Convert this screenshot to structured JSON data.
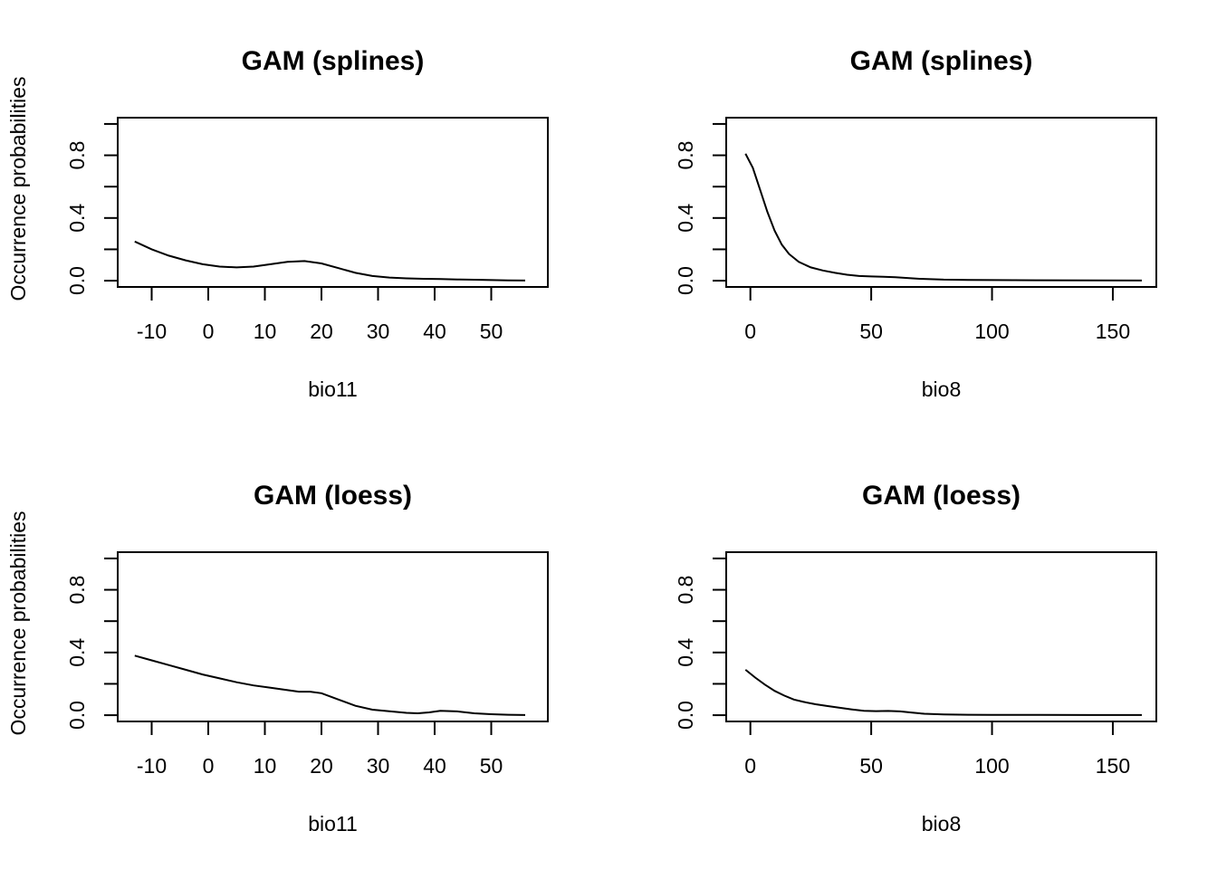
{
  "chart_data": [
    {
      "type": "line",
      "title": "GAM (splines)",
      "xlabel": "bio11",
      "ylabel": "Occurrence probabilities",
      "xlim": [
        -16,
        60
      ],
      "ylim": [
        -0.04,
        1.04
      ],
      "xticks": [
        -10,
        0,
        10,
        20,
        30,
        40,
        50
      ],
      "xtick_labels": [
        "-10",
        "0",
        "10",
        "20",
        "30",
        "40",
        "50"
      ],
      "yticks": [
        0.0,
        0.2,
        0.4,
        0.6,
        0.8,
        1.0
      ],
      "ytick_labels": [
        "0.0",
        "",
        "0.4",
        "",
        "0.8",
        ""
      ],
      "series": [
        {
          "x": [
            -13,
            -10,
            -7,
            -4,
            -1,
            2,
            5,
            8,
            11,
            14,
            17,
            20,
            23,
            26,
            29,
            32,
            35,
            38,
            41,
            44,
            47,
            50,
            53,
            56
          ],
          "y": [
            0.25,
            0.2,
            0.16,
            0.13,
            0.105,
            0.09,
            0.085,
            0.09,
            0.105,
            0.12,
            0.125,
            0.11,
            0.08,
            0.05,
            0.03,
            0.02,
            0.015,
            0.012,
            0.01,
            0.008,
            0.006,
            0.004,
            0.002,
            0.001
          ]
        }
      ]
    },
    {
      "type": "line",
      "title": "GAM (splines)",
      "xlabel": "bio8",
      "ylabel": "",
      "xlim": [
        -10,
        168
      ],
      "ylim": [
        -0.04,
        1.04
      ],
      "xticks": [
        0,
        50,
        100,
        150
      ],
      "xtick_labels": [
        "0",
        "50",
        "100",
        "150"
      ],
      "yticks": [
        0.0,
        0.2,
        0.4,
        0.6,
        0.8,
        1.0
      ],
      "ytick_labels": [
        "0.0",
        "",
        "0.4",
        "",
        "0.8",
        ""
      ],
      "series": [
        {
          "x": [
            -2,
            1,
            4,
            7,
            10,
            13,
            16,
            20,
            25,
            30,
            35,
            40,
            45,
            50,
            55,
            60,
            65,
            70,
            80,
            90,
            100,
            120,
            140,
            162
          ],
          "y": [
            0.81,
            0.72,
            0.58,
            0.44,
            0.32,
            0.23,
            0.17,
            0.12,
            0.085,
            0.065,
            0.05,
            0.038,
            0.03,
            0.027,
            0.025,
            0.022,
            0.017,
            0.012,
            0.007,
            0.005,
            0.004,
            0.003,
            0.002,
            0.001
          ]
        }
      ]
    },
    {
      "type": "line",
      "title": "GAM (loess)",
      "xlabel": "bio11",
      "ylabel": "Occurrence probabilities",
      "xlim": [
        -16,
        60
      ],
      "ylim": [
        -0.04,
        1.04
      ],
      "xticks": [
        -10,
        0,
        10,
        20,
        30,
        40,
        50
      ],
      "xtick_labels": [
        "-10",
        "0",
        "10",
        "20",
        "30",
        "40",
        "50"
      ],
      "yticks": [
        0.0,
        0.2,
        0.4,
        0.6,
        0.8,
        1.0
      ],
      "ytick_labels": [
        "0.0",
        "",
        "0.4",
        "",
        "0.8",
        ""
      ],
      "series": [
        {
          "x": [
            -13,
            -10,
            -7,
            -4,
            -1,
            2,
            5,
            8,
            11,
            14,
            16,
            18,
            20,
            23,
            26,
            29,
            32,
            35,
            37,
            39,
            41,
            44,
            47,
            50,
            53,
            56
          ],
          "y": [
            0.38,
            0.35,
            0.32,
            0.29,
            0.26,
            0.235,
            0.21,
            0.19,
            0.175,
            0.16,
            0.15,
            0.15,
            0.14,
            0.1,
            0.06,
            0.035,
            0.025,
            0.015,
            0.012,
            0.018,
            0.028,
            0.024,
            0.012,
            0.006,
            0.003,
            0.001
          ]
        }
      ]
    },
    {
      "type": "line",
      "title": "GAM (loess)",
      "xlabel": "bio8",
      "ylabel": "",
      "xlim": [
        -10,
        168
      ],
      "ylim": [
        -0.04,
        1.04
      ],
      "xticks": [
        0,
        50,
        100,
        150
      ],
      "xtick_labels": [
        "0",
        "50",
        "100",
        "150"
      ],
      "yticks": [
        0.0,
        0.2,
        0.4,
        0.6,
        0.8,
        1.0
      ],
      "ytick_labels": [
        "0.0",
        "",
        "0.4",
        "",
        "0.8",
        ""
      ],
      "series": [
        {
          "x": [
            -2,
            2,
            6,
            10,
            14,
            18,
            22,
            27,
            32,
            37,
            42,
            47,
            52,
            57,
            62,
            67,
            72,
            80,
            90,
            100,
            120,
            140,
            162
          ],
          "y": [
            0.29,
            0.24,
            0.195,
            0.155,
            0.125,
            0.1,
            0.085,
            0.07,
            0.058,
            0.047,
            0.037,
            0.028,
            0.026,
            0.027,
            0.024,
            0.016,
            0.009,
            0.005,
            0.003,
            0.002,
            0.002,
            0.001,
            0.001
          ]
        }
      ]
    }
  ]
}
